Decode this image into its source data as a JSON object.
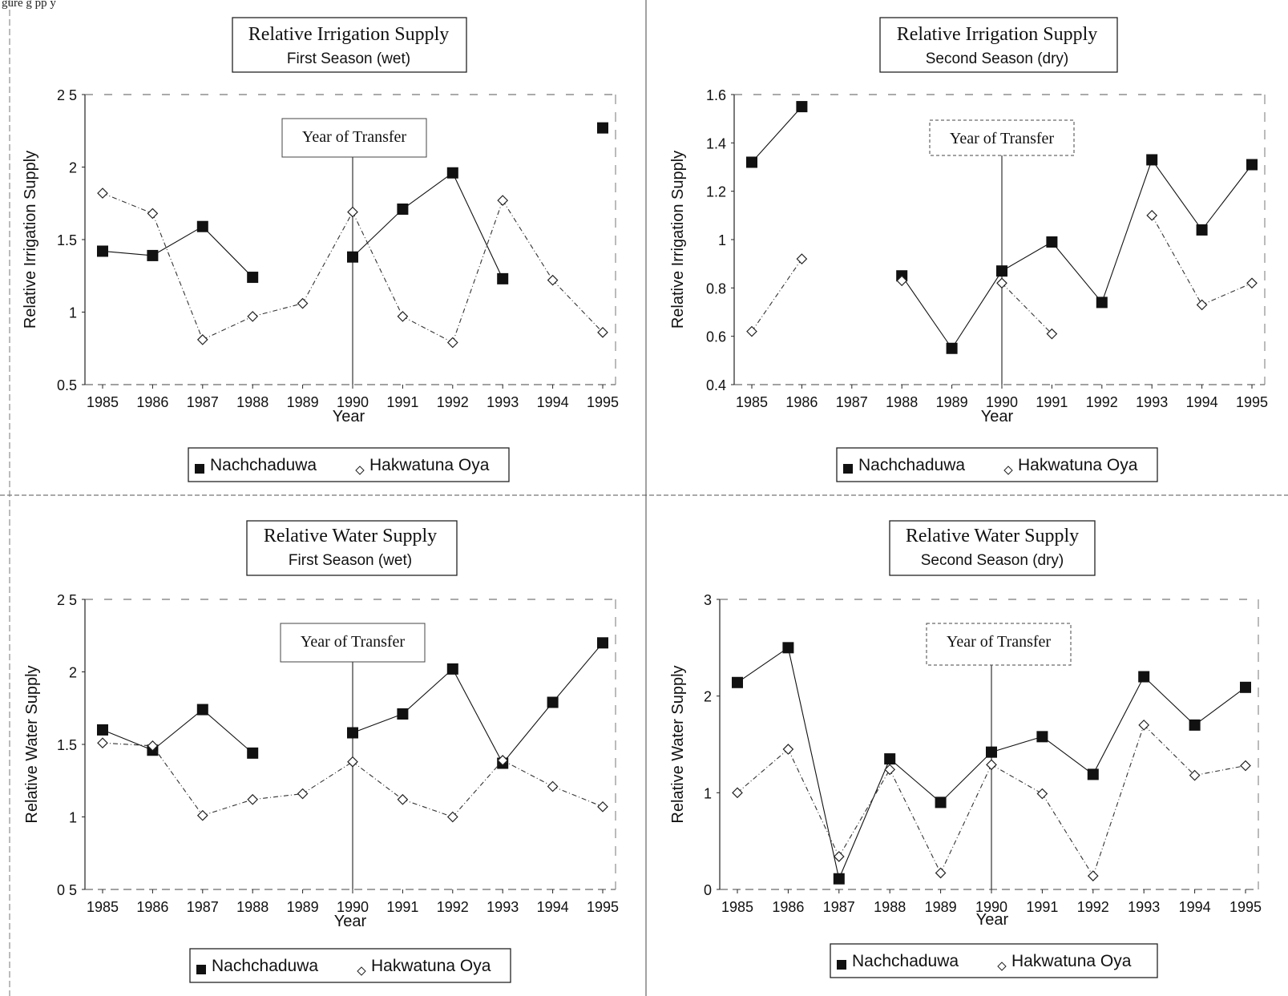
{
  "header_fragment": "gure            g         pp y",
  "chart_data": [
    {
      "type": "line",
      "title": "Relative Irrigation Supply",
      "subtitle": "First Season (wet)",
      "xlabel": "Year",
      "ylabel": "Relative Irrigation Supply",
      "annotation": "Year of Transfer",
      "transfer_year": 1990,
      "categories": [
        "1985",
        "1986",
        "1987",
        "1988",
        "1989",
        "1990",
        "1991",
        "1992",
        "1993",
        "1994",
        "1995"
      ],
      "x": [
        1985,
        1986,
        1987,
        1988,
        1989,
        1990,
        1991,
        1992,
        1993,
        1994,
        1995
      ],
      "ylim": [
        0.5,
        2.5
      ],
      "yticks": [
        0.5,
        1,
        1.5,
        2,
        2.5
      ],
      "ytick_labels": [
        "0.5",
        "1",
        "1.5",
        "2",
        "2 5"
      ],
      "legend": "bottom",
      "series": [
        {
          "name": "Nachchaduwa",
          "marker": "square",
          "values": [
            1.42,
            1.39,
            1.59,
            1.24,
            null,
            1.38,
            1.71,
            1.96,
            1.23,
            null,
            2.27
          ]
        },
        {
          "name": "Hakwatuna Oya",
          "marker": "diamond",
          "values": [
            1.82,
            1.68,
            0.81,
            0.97,
            1.06,
            1.69,
            0.97,
            0.79,
            1.77,
            1.22,
            0.86
          ]
        }
      ]
    },
    {
      "type": "line",
      "title": "Relative Irrigation Supply",
      "subtitle": "Second Season (dry)",
      "xlabel": "Year",
      "ylabel": "Relative Irrigation Supply",
      "annotation": "Year of Transfer",
      "transfer_year": 1990,
      "categories": [
        "1985",
        "1986",
        "1987",
        "1988",
        "1989",
        "1990",
        "1991",
        "1992",
        "1993",
        "1994",
        "1995"
      ],
      "x": [
        1985,
        1986,
        1987,
        1988,
        1989,
        1990,
        1991,
        1992,
        1993,
        1994,
        1995
      ],
      "ylim": [
        0.4,
        1.6
      ],
      "yticks": [
        0.4,
        0.6,
        0.8,
        1,
        1.2,
        1.4,
        1.6
      ],
      "ytick_labels": [
        "0.4",
        "0.6",
        "0.8",
        "1",
        "1.2",
        "1.4",
        "1.6"
      ],
      "legend": "bottom",
      "series": [
        {
          "name": "Nachchaduwa",
          "marker": "square",
          "values": [
            1.32,
            1.55,
            null,
            0.85,
            0.55,
            0.87,
            0.99,
            0.74,
            1.33,
            1.04,
            1.31
          ]
        },
        {
          "name": "Hakwatuna Oya",
          "marker": "diamond",
          "values": [
            0.62,
            0.92,
            null,
            0.83,
            null,
            0.82,
            0.61,
            null,
            1.1,
            0.73,
            0.82
          ]
        }
      ]
    },
    {
      "type": "line",
      "title": "Relative Water Supply",
      "subtitle": "First Season (wet)",
      "xlabel": "Year",
      "ylabel": "Relative Water Supply",
      "annotation": "Year of Transfer",
      "transfer_year": 1990,
      "categories": [
        "1985",
        "1986",
        "1987",
        "1988",
        "1989",
        "1990",
        "1991",
        "1992",
        "1993",
        "1994",
        "1995"
      ],
      "x": [
        1985,
        1986,
        1987,
        1988,
        1989,
        1990,
        1991,
        1992,
        1993,
        1994,
        1995
      ],
      "ylim": [
        0.5,
        2.5
      ],
      "yticks": [
        0.5,
        1,
        1.5,
        2,
        2.5
      ],
      "ytick_labels": [
        "0 5",
        "1",
        "1.5",
        "2",
        "2 5"
      ],
      "legend": "bottom",
      "series": [
        {
          "name": "Nachchaduwa",
          "marker": "square",
          "values": [
            1.6,
            1.46,
            1.74,
            1.44,
            null,
            1.58,
            1.71,
            2.02,
            1.37,
            1.79,
            2.2
          ]
        },
        {
          "name": "Hakwatuna Oya",
          "marker": "diamond",
          "values": [
            1.51,
            1.49,
            1.01,
            1.12,
            1.16,
            1.38,
            1.12,
            1.0,
            1.39,
            1.21,
            1.07
          ]
        }
      ]
    },
    {
      "type": "line",
      "title": "Relative Water Supply",
      "subtitle": "Second Season (dry)",
      "xlabel": "Year",
      "ylabel": "Relative Water Supply",
      "annotation": "Year of Transfer",
      "transfer_year": 1990,
      "categories": [
        "1985",
        "1986",
        "1987",
        "1988",
        "1989",
        "1990",
        "1991",
        "1992",
        "1993",
        "1994",
        "1995"
      ],
      "x": [
        1985,
        1986,
        1987,
        1988,
        1989,
        1990,
        1991,
        1992,
        1993,
        1994,
        1995
      ],
      "ylim": [
        0,
        3
      ],
      "yticks": [
        0,
        1,
        2,
        3
      ],
      "ytick_labels": [
        "0",
        "1",
        "2",
        "3"
      ],
      "legend": "bottom",
      "series": [
        {
          "name": "Nachchaduwa",
          "marker": "square",
          "values": [
            2.14,
            2.5,
            0.11,
            1.35,
            0.9,
            1.42,
            1.58,
            1.19,
            2.2,
            1.7,
            2.09
          ]
        },
        {
          "name": "Hakwatuna Oya",
          "marker": "diamond",
          "values": [
            1.0,
            1.45,
            0.34,
            1.24,
            0.17,
            1.29,
            0.99,
            0.14,
            1.7,
            1.18,
            1.28
          ]
        }
      ]
    }
  ]
}
